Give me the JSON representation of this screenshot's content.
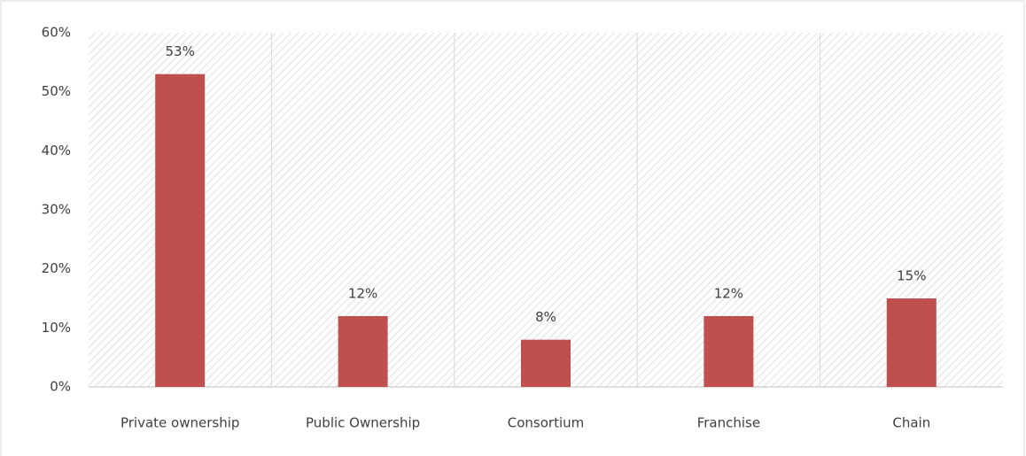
{
  "chart_data": {
    "type": "bar",
    "categories": [
      "Private ownership",
      "Public Ownership",
      "Consortium",
      "Franchise",
      "Chain"
    ],
    "values": [
      53,
      12,
      8,
      12,
      15
    ],
    "value_labels": [
      "53%",
      "12%",
      "8%",
      "12%",
      "15%"
    ],
    "color": "#c0504d",
    "ylim": [
      0,
      60
    ],
    "yticks": [
      {
        "value": 0,
        "label": "0%"
      },
      {
        "value": 10,
        "label": "10%"
      },
      {
        "value": 20,
        "label": "20%"
      },
      {
        "value": 30,
        "label": "30%"
      },
      {
        "value": 40,
        "label": "40%"
      },
      {
        "value": 50,
        "label": "50%"
      },
      {
        "value": 60,
        "label": "60%"
      }
    ],
    "grid": false
  }
}
